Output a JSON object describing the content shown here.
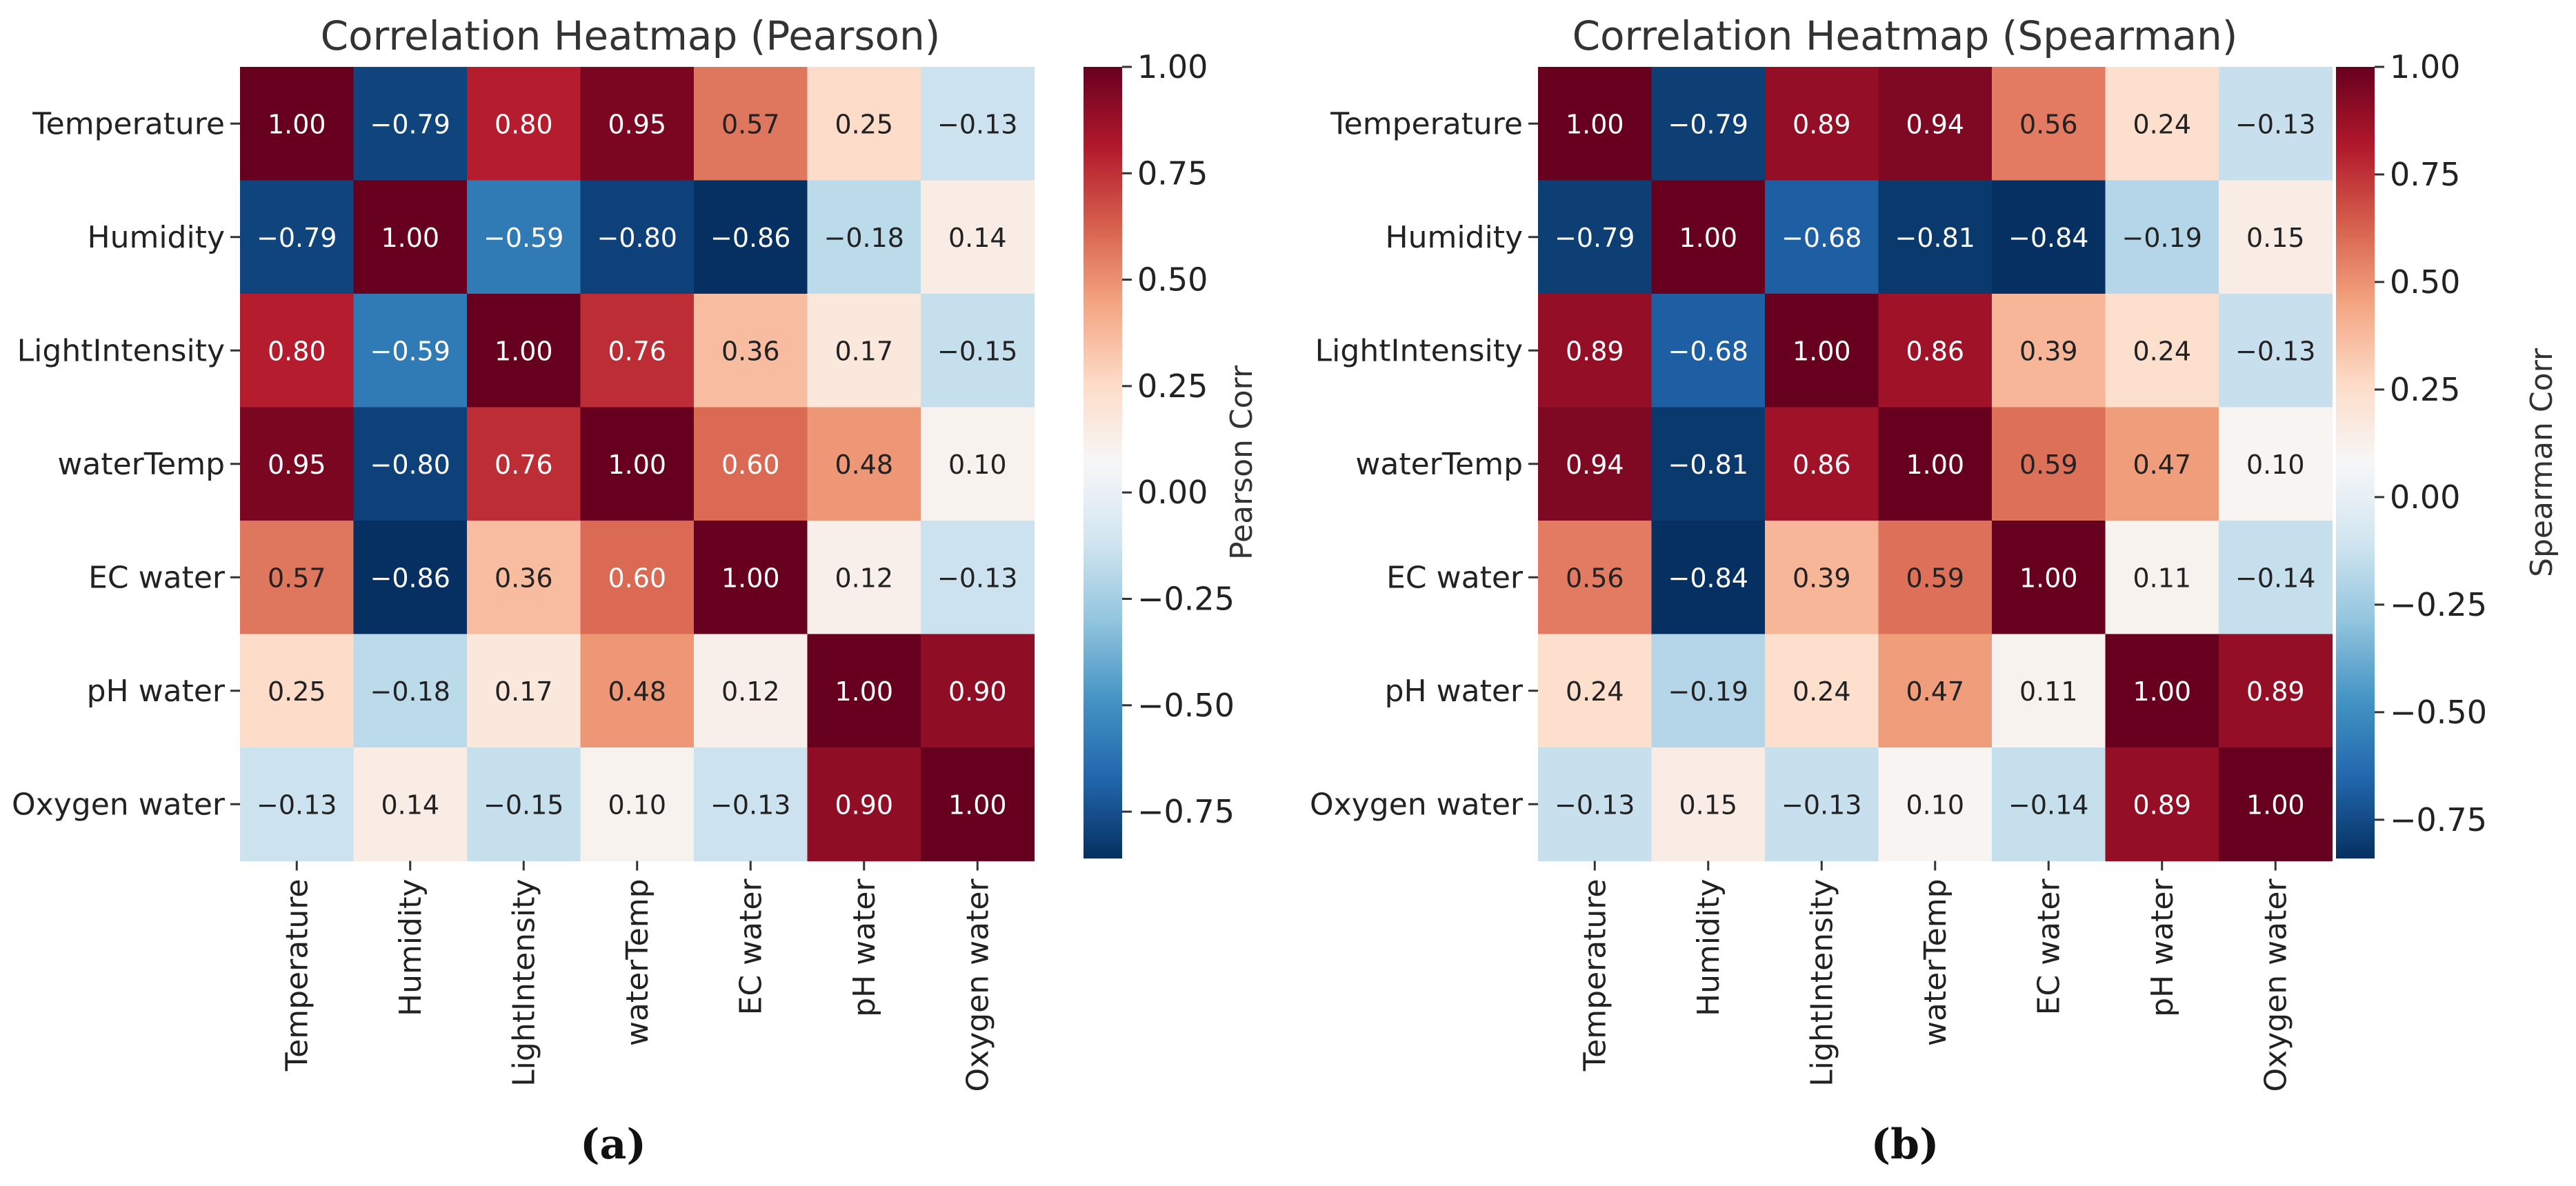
{
  "chart_data": [
    {
      "type": "heatmap",
      "title": "Correlation Heatmap (Pearson)",
      "caption": "(a)",
      "row_labels": [
        "Temperature",
        "Humidity",
        "LightIntensity",
        "waterTemp",
        "EC water",
        "pH water",
        "Oxygen water"
      ],
      "col_labels": [
        "Temperature",
        "Humidity",
        "LightIntensity",
        "waterTemp",
        "EC water",
        "pH water",
        "Oxygen water"
      ],
      "values": [
        [
          1.0,
          -0.79,
          0.8,
          0.95,
          0.57,
          0.25,
          -0.13
        ],
        [
          -0.79,
          1.0,
          -0.59,
          -0.8,
          -0.86,
          -0.18,
          0.14
        ],
        [
          0.8,
          -0.59,
          1.0,
          0.76,
          0.36,
          0.17,
          -0.15
        ],
        [
          0.95,
          -0.8,
          0.76,
          1.0,
          0.6,
          0.48,
          0.1
        ],
        [
          0.57,
          -0.86,
          0.36,
          0.6,
          1.0,
          0.12,
          -0.13
        ],
        [
          0.25,
          -0.18,
          0.17,
          0.48,
          0.12,
          1.0,
          0.9
        ],
        [
          -0.13,
          0.14,
          -0.15,
          0.1,
          -0.13,
          0.9,
          1.0
        ]
      ],
      "colorbar": {
        "label": "Pearson Corr",
        "ticks": [
          "1.00",
          "0.75",
          "0.50",
          "0.25",
          "0.00",
          "−0.25",
          "−0.50",
          "−0.75"
        ],
        "range": [
          -0.86,
          1.0
        ]
      },
      "colormap": "RdBu_r"
    },
    {
      "type": "heatmap",
      "title": "Correlation Heatmap (Spearman)",
      "caption": "(b)",
      "row_labels": [
        "Temperature",
        "Humidity",
        "LightIntensity",
        "waterTemp",
        "EC water",
        "pH water",
        "Oxygen water"
      ],
      "col_labels": [
        "Temperature",
        "Humidity",
        "LightIntensity",
        "waterTemp",
        "EC water",
        "pH water",
        "Oxygen water"
      ],
      "values": [
        [
          1.0,
          -0.79,
          0.89,
          0.94,
          0.56,
          0.24,
          -0.13
        ],
        [
          -0.79,
          1.0,
          -0.68,
          -0.81,
          -0.84,
          -0.19,
          0.15
        ],
        [
          0.89,
          -0.68,
          1.0,
          0.86,
          0.39,
          0.24,
          -0.13
        ],
        [
          0.94,
          -0.81,
          0.86,
          1.0,
          0.59,
          0.47,
          0.1
        ],
        [
          0.56,
          -0.84,
          0.39,
          0.59,
          1.0,
          0.11,
          -0.14
        ],
        [
          0.24,
          -0.19,
          0.24,
          0.47,
          0.11,
          1.0,
          0.89
        ],
        [
          -0.13,
          0.15,
          -0.13,
          0.1,
          -0.14,
          0.89,
          1.0
        ]
      ],
      "colorbar": {
        "label": "Spearman Corr",
        "ticks": [
          "1.00",
          "0.75",
          "0.50",
          "0.25",
          "0.00",
          "−0.25",
          "−0.50",
          "−0.75"
        ],
        "range": [
          -0.84,
          1.0
        ]
      },
      "colormap": "RdBu_r"
    }
  ]
}
